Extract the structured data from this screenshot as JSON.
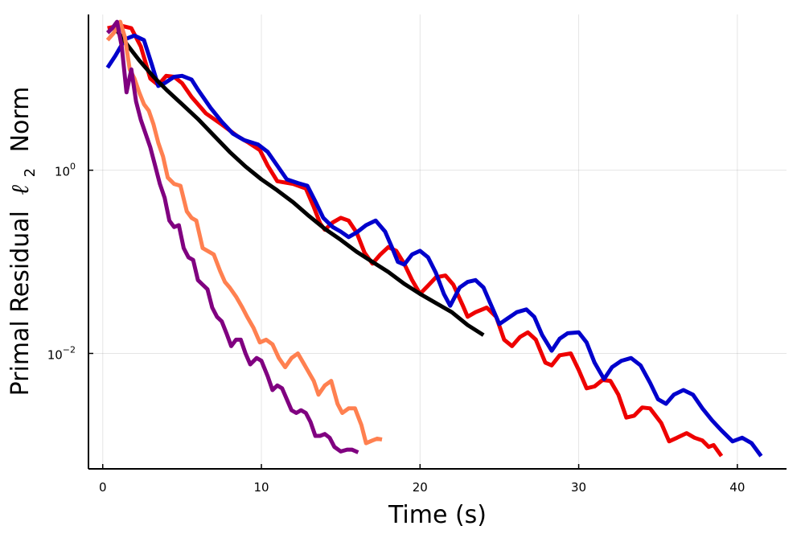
{
  "chart_data": {
    "type": "line",
    "title": "",
    "xlabel": "Time (s)",
    "ylabel": "Primal Residual",
    "ylabel_math": "ℓ",
    "ylabel_math_sub": "2",
    "ylabel_suffix": "Norm",
    "yscale": "log10",
    "xlim": [
      -0.9,
      43.1
    ],
    "ylim_log10": [
      -3.26,
      1.7
    ],
    "grid": true,
    "legend": "none",
    "x_ticks": [
      {
        "value": 0,
        "label": "0"
      },
      {
        "value": 10,
        "label": "10"
      },
      {
        "value": 20,
        "label": "20"
      },
      {
        "value": 30,
        "label": "30"
      },
      {
        "value": 40,
        "label": "40"
      }
    ],
    "y_ticks": [
      {
        "value_log10": 0,
        "base": "10",
        "exponent": "0"
      },
      {
        "value_log10": -2,
        "base": "10",
        "exponent": "−2"
      }
    ],
    "series": [
      {
        "name": "red",
        "color": "#ee0000",
        "points": [
          [
            0.3,
            1.55
          ],
          [
            1.1,
            1.58
          ],
          [
            1.8,
            1.55
          ],
          [
            2.4,
            1.35
          ],
          [
            3.0,
            1.0
          ],
          [
            3.5,
            0.93
          ],
          [
            4.0,
            1.03
          ],
          [
            4.5,
            1.02
          ],
          [
            5.0,
            0.95
          ],
          [
            5.6,
            0.8
          ],
          [
            6.5,
            0.62
          ],
          [
            7.5,
            0.5
          ],
          [
            8.5,
            0.37
          ],
          [
            9.2,
            0.3
          ],
          [
            9.9,
            0.22
          ],
          [
            10.4,
            0.05
          ],
          [
            11.0,
            -0.12
          ],
          [
            12.0,
            -0.15
          ],
          [
            12.8,
            -0.2
          ],
          [
            13.3,
            -0.4
          ],
          [
            13.7,
            -0.58
          ],
          [
            14.0,
            -0.65
          ],
          [
            14.5,
            -0.57
          ],
          [
            15.0,
            -0.52
          ],
          [
            15.5,
            -0.55
          ],
          [
            16.0,
            -0.68
          ],
          [
            16.5,
            -0.9
          ],
          [
            17.0,
            -1.02
          ],
          [
            17.5,
            -0.92
          ],
          [
            18.0,
            -0.84
          ],
          [
            18.5,
            -0.88
          ],
          [
            19.0,
            -1.02
          ],
          [
            19.5,
            -1.2
          ],
          [
            20.0,
            -1.35
          ],
          [
            20.5,
            -1.26
          ],
          [
            21.0,
            -1.17
          ],
          [
            21.6,
            -1.15
          ],
          [
            22.1,
            -1.25
          ],
          [
            22.7,
            -1.48
          ],
          [
            23.0,
            -1.6
          ],
          [
            23.5,
            -1.55
          ],
          [
            24.2,
            -1.5
          ],
          [
            24.8,
            -1.6
          ],
          [
            25.3,
            -1.85
          ],
          [
            25.8,
            -1.92
          ],
          [
            26.3,
            -1.82
          ],
          [
            26.8,
            -1.77
          ],
          [
            27.3,
            -1.85
          ],
          [
            27.9,
            -2.1
          ],
          [
            28.3,
            -2.13
          ],
          [
            28.8,
            -2.02
          ],
          [
            29.5,
            -2.0
          ],
          [
            30.0,
            -2.18
          ],
          [
            30.5,
            -2.38
          ],
          [
            31.0,
            -2.36
          ],
          [
            31.5,
            -2.29
          ],
          [
            32.0,
            -2.3
          ],
          [
            32.5,
            -2.45
          ],
          [
            33.0,
            -2.7
          ],
          [
            33.5,
            -2.68
          ],
          [
            34.0,
            -2.59
          ],
          [
            34.5,
            -2.6
          ],
          [
            35.2,
            -2.76
          ],
          [
            35.7,
            -2.96
          ],
          [
            36.2,
            -2.92
          ],
          [
            36.8,
            -2.87
          ],
          [
            37.3,
            -2.92
          ],
          [
            37.8,
            -2.95
          ],
          [
            38.2,
            -3.02
          ],
          [
            38.5,
            -3.0
          ],
          [
            39.0,
            -3.12
          ]
        ]
      },
      {
        "name": "blue",
        "color": "#0000cc",
        "points": [
          [
            0.3,
            1.12
          ],
          [
            0.8,
            1.25
          ],
          [
            1.4,
            1.43
          ],
          [
            2.0,
            1.47
          ],
          [
            2.6,
            1.42
          ],
          [
            3.1,
            1.15
          ],
          [
            3.5,
            0.92
          ],
          [
            3.9,
            0.95
          ],
          [
            4.5,
            1.02
          ],
          [
            5.0,
            1.03
          ],
          [
            5.6,
            0.99
          ],
          [
            6.0,
            0.88
          ],
          [
            6.8,
            0.68
          ],
          [
            7.5,
            0.53
          ],
          [
            8.2,
            0.4
          ],
          [
            8.9,
            0.33
          ],
          [
            9.8,
            0.28
          ],
          [
            10.4,
            0.2
          ],
          [
            11.0,
            0.05
          ],
          [
            11.6,
            -0.1
          ],
          [
            12.3,
            -0.14
          ],
          [
            12.9,
            -0.17
          ],
          [
            13.4,
            -0.34
          ],
          [
            13.9,
            -0.52
          ],
          [
            14.5,
            -0.62
          ],
          [
            15.0,
            -0.67
          ],
          [
            15.5,
            -0.73
          ],
          [
            16.0,
            -0.68
          ],
          [
            16.6,
            -0.6
          ],
          [
            17.2,
            -0.55
          ],
          [
            17.8,
            -0.67
          ],
          [
            18.2,
            -0.83
          ],
          [
            18.6,
            -1.0
          ],
          [
            19.0,
            -1.03
          ],
          [
            19.5,
            -0.92
          ],
          [
            20.0,
            -0.88
          ],
          [
            20.5,
            -0.95
          ],
          [
            21.0,
            -1.12
          ],
          [
            21.5,
            -1.35
          ],
          [
            21.9,
            -1.48
          ],
          [
            22.5,
            -1.28
          ],
          [
            23.0,
            -1.22
          ],
          [
            23.5,
            -1.2
          ],
          [
            24.0,
            -1.28
          ],
          [
            24.6,
            -1.52
          ],
          [
            25.0,
            -1.68
          ],
          [
            25.5,
            -1.62
          ],
          [
            26.1,
            -1.55
          ],
          [
            26.7,
            -1.52
          ],
          [
            27.2,
            -1.6
          ],
          [
            27.7,
            -1.8
          ],
          [
            28.3,
            -1.97
          ],
          [
            28.8,
            -1.84
          ],
          [
            29.3,
            -1.78
          ],
          [
            30.0,
            -1.77
          ],
          [
            30.5,
            -1.88
          ],
          [
            31.0,
            -2.1
          ],
          [
            31.6,
            -2.28
          ],
          [
            32.1,
            -2.15
          ],
          [
            32.7,
            -2.08
          ],
          [
            33.3,
            -2.05
          ],
          [
            33.9,
            -2.13
          ],
          [
            34.5,
            -2.32
          ],
          [
            35.0,
            -2.5
          ],
          [
            35.5,
            -2.55
          ],
          [
            36.0,
            -2.45
          ],
          [
            36.6,
            -2.4
          ],
          [
            37.2,
            -2.45
          ],
          [
            37.8,
            -2.6
          ],
          [
            38.4,
            -2.73
          ],
          [
            39.0,
            -2.84
          ],
          [
            39.7,
            -2.96
          ],
          [
            40.3,
            -2.92
          ],
          [
            40.9,
            -2.98
          ],
          [
            41.5,
            -3.12
          ]
        ]
      },
      {
        "name": "black",
        "color": "#000000",
        "points": [
          [
            0.7,
            1.57
          ],
          [
            1.5,
            1.38
          ],
          [
            2.3,
            1.2
          ],
          [
            3.2,
            1.02
          ],
          [
            4.0,
            0.88
          ],
          [
            5.0,
            0.72
          ],
          [
            6.0,
            0.56
          ],
          [
            7.0,
            0.38
          ],
          [
            8.0,
            0.2
          ],
          [
            9.0,
            0.04
          ],
          [
            10.0,
            -0.1
          ],
          [
            11.0,
            -0.22
          ],
          [
            12.0,
            -0.35
          ],
          [
            13.0,
            -0.5
          ],
          [
            14.0,
            -0.64
          ],
          [
            15.0,
            -0.76
          ],
          [
            16.0,
            -0.89
          ],
          [
            17.0,
            -1.0
          ],
          [
            18.0,
            -1.11
          ],
          [
            19.0,
            -1.24
          ],
          [
            20.0,
            -1.35
          ],
          [
            21.0,
            -1.45
          ],
          [
            22.0,
            -1.55
          ],
          [
            23.0,
            -1.69
          ],
          [
            24.0,
            -1.8
          ]
        ]
      },
      {
        "name": "orange",
        "color": "#ff8050",
        "points": [
          [
            0.3,
            1.42
          ],
          [
            0.7,
            1.5
          ],
          [
            1.1,
            1.62
          ],
          [
            1.4,
            1.45
          ],
          [
            1.7,
            1.1
          ],
          [
            2.0,
            1.0
          ],
          [
            2.3,
            0.85
          ],
          [
            2.6,
            0.72
          ],
          [
            2.9,
            0.65
          ],
          [
            3.2,
            0.5
          ],
          [
            3.5,
            0.3
          ],
          [
            3.8,
            0.15
          ],
          [
            4.1,
            -0.08
          ],
          [
            4.5,
            -0.15
          ],
          [
            4.9,
            -0.17
          ],
          [
            5.3,
            -0.45
          ],
          [
            5.6,
            -0.52
          ],
          [
            5.9,
            -0.55
          ],
          [
            6.3,
            -0.85
          ],
          [
            6.6,
            -0.88
          ],
          [
            7.0,
            -0.92
          ],
          [
            7.4,
            -1.1
          ],
          [
            7.7,
            -1.22
          ],
          [
            8.0,
            -1.28
          ],
          [
            8.4,
            -1.38
          ],
          [
            8.8,
            -1.5
          ],
          [
            9.1,
            -1.6
          ],
          [
            9.5,
            -1.72
          ],
          [
            9.9,
            -1.88
          ],
          [
            10.3,
            -1.85
          ],
          [
            10.7,
            -1.9
          ],
          [
            11.1,
            -2.05
          ],
          [
            11.5,
            -2.15
          ],
          [
            11.9,
            -2.05
          ],
          [
            12.3,
            -2.0
          ],
          [
            12.8,
            -2.15
          ],
          [
            13.3,
            -2.3
          ],
          [
            13.6,
            -2.45
          ],
          [
            14.0,
            -2.35
          ],
          [
            14.4,
            -2.3
          ],
          [
            14.8,
            -2.55
          ],
          [
            15.1,
            -2.65
          ],
          [
            15.5,
            -2.6
          ],
          [
            15.9,
            -2.6
          ],
          [
            16.3,
            -2.78
          ],
          [
            16.6,
            -2.98
          ],
          [
            17.0,
            -2.95
          ],
          [
            17.3,
            -2.93
          ],
          [
            17.6,
            -2.94
          ]
        ]
      },
      {
        "name": "purple",
        "color": "#800080",
        "points": [
          [
            0.3,
            1.5
          ],
          [
            0.6,
            1.55
          ],
          [
            0.9,
            1.62
          ],
          [
            1.2,
            1.35
          ],
          [
            1.5,
            0.85
          ],
          [
            1.8,
            1.1
          ],
          [
            2.1,
            0.75
          ],
          [
            2.4,
            0.55
          ],
          [
            2.7,
            0.4
          ],
          [
            3.0,
            0.25
          ],
          [
            3.3,
            0.05
          ],
          [
            3.6,
            -0.15
          ],
          [
            3.9,
            -0.3
          ],
          [
            4.2,
            -0.55
          ],
          [
            4.5,
            -0.62
          ],
          [
            4.8,
            -0.6
          ],
          [
            5.1,
            -0.85
          ],
          [
            5.4,
            -0.95
          ],
          [
            5.7,
            -0.98
          ],
          [
            6.0,
            -1.2
          ],
          [
            6.3,
            -1.25
          ],
          [
            6.6,
            -1.3
          ],
          [
            6.9,
            -1.5
          ],
          [
            7.2,
            -1.6
          ],
          [
            7.5,
            -1.65
          ],
          [
            7.8,
            -1.78
          ],
          [
            8.1,
            -1.92
          ],
          [
            8.4,
            -1.85
          ],
          [
            8.7,
            -1.85
          ],
          [
            9.0,
            -2.0
          ],
          [
            9.3,
            -2.12
          ],
          [
            9.7,
            -2.05
          ],
          [
            10.0,
            -2.08
          ],
          [
            10.4,
            -2.25
          ],
          [
            10.7,
            -2.4
          ],
          [
            11.0,
            -2.35
          ],
          [
            11.3,
            -2.38
          ],
          [
            11.6,
            -2.5
          ],
          [
            11.9,
            -2.62
          ],
          [
            12.2,
            -2.65
          ],
          [
            12.5,
            -2.62
          ],
          [
            12.8,
            -2.65
          ],
          [
            13.1,
            -2.75
          ],
          [
            13.4,
            -2.9
          ],
          [
            13.7,
            -2.9
          ],
          [
            14.0,
            -2.88
          ],
          [
            14.3,
            -2.92
          ],
          [
            14.6,
            -3.02
          ],
          [
            15.0,
            -3.07
          ],
          [
            15.4,
            -3.05
          ],
          [
            15.7,
            -3.05
          ],
          [
            16.1,
            -3.08
          ]
        ]
      }
    ]
  }
}
